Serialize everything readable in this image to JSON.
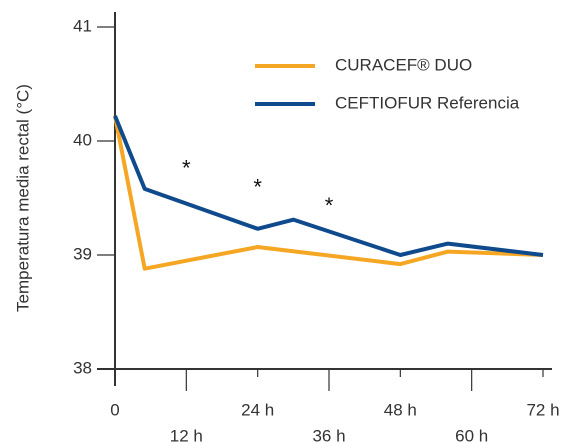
{
  "chart_data": {
    "type": "line",
    "y_label": "Temperatura media rectal (°C)",
    "xlim": [
      0,
      72
    ],
    "ylim": [
      38,
      41
    ],
    "xticks": [
      0,
      {
        "value": 12,
        "label": "12 h"
      },
      {
        "value": 24,
        "label": "24 h"
      },
      {
        "value": 36,
        "label": "36 h"
      },
      {
        "value": 48,
        "label": "48 h"
      },
      {
        "value": 60,
        "label": "60 h"
      },
      {
        "value": 72,
        "label": "72 h"
      }
    ],
    "yticks": [
      38,
      39,
      40,
      41
    ],
    "legend": "upper right",
    "series": [
      {
        "name": "CURACEF® DUO",
        "color": "#f5a623",
        "x": [
          0,
          5,
          24,
          48,
          56,
          72
        ],
        "values": [
          40.22,
          38.88,
          39.07,
          38.92,
          39.03,
          39.0
        ]
      },
      {
        "name": "CEFTIOFUR Referencia",
        "color": "#0e4a8c",
        "x": [
          0,
          5,
          24,
          30,
          48,
          56,
          72
        ],
        "values": [
          40.22,
          39.58,
          39.23,
          39.31,
          39.0,
          39.1,
          39.0
        ]
      }
    ],
    "annotations": [
      {
        "text": "*",
        "x": 12,
        "y": 39.75
      },
      {
        "text": "*",
        "x": 24,
        "y": 39.58
      },
      {
        "text": "*",
        "x": 36,
        "y": 39.42
      }
    ]
  }
}
